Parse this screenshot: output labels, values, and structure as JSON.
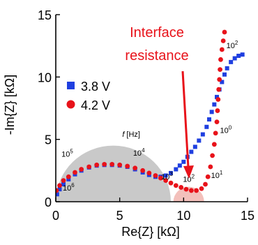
{
  "chart_data": {
    "type": "scatter",
    "title": "",
    "xlabel": "Re{Z} [kΩ]",
    "ylabel": "-Im{Z} [kΩ]",
    "xlim": [
      0,
      15
    ],
    "ylim": [
      0,
      15
    ],
    "xticks": [
      "0",
      "5",
      "10",
      "15"
    ],
    "yticks": [
      "0",
      "5",
      "10",
      "15"
    ],
    "grid": false,
    "legend_position": "left",
    "series": [
      {
        "name": "3.8 V",
        "color": "#1f3fe0",
        "marker": "square",
        "points": [
          [
            0.1,
            0.6
          ],
          [
            0.3,
            1.0
          ],
          [
            0.6,
            1.4
          ],
          [
            1.0,
            1.8
          ],
          [
            1.5,
            2.2
          ],
          [
            2.0,
            2.5
          ],
          [
            2.6,
            2.75
          ],
          [
            3.2,
            2.9
          ],
          [
            3.8,
            2.95
          ],
          [
            4.4,
            2.95
          ],
          [
            5.0,
            2.9
          ],
          [
            5.6,
            2.8
          ],
          [
            6.2,
            2.6
          ],
          [
            6.8,
            2.35
          ],
          [
            7.3,
            2.15
          ],
          [
            7.8,
            2.0
          ],
          [
            8.2,
            2.0
          ],
          [
            8.6,
            2.1
          ],
          [
            9.0,
            2.3
          ],
          [
            9.4,
            2.6
          ],
          [
            9.7,
            2.9
          ],
          [
            10.0,
            3.2
          ],
          [
            10.3,
            3.6
          ],
          [
            10.6,
            4.0
          ],
          [
            10.9,
            4.4
          ],
          [
            11.2,
            4.9
          ],
          [
            11.5,
            5.4
          ],
          [
            11.8,
            6.0
          ],
          [
            12.0,
            6.6
          ],
          [
            12.2,
            7.2
          ],
          [
            12.4,
            7.8
          ],
          [
            12.6,
            8.4
          ],
          [
            12.8,
            9.0
          ],
          [
            13.0,
            9.6
          ],
          [
            13.2,
            10.2
          ],
          [
            13.4,
            10.7
          ],
          [
            13.7,
            11.2
          ],
          [
            14.0,
            11.5
          ],
          [
            14.3,
            11.7
          ],
          [
            14.6,
            11.8
          ]
        ]
      },
      {
        "name": "4.2 V",
        "color": "#e8121a",
        "marker": "circle",
        "points": [
          [
            0.05,
            0.9
          ],
          [
            0.3,
            1.3
          ],
          [
            0.6,
            1.7
          ],
          [
            1.0,
            2.0
          ],
          [
            1.5,
            2.35
          ],
          [
            2.0,
            2.6
          ],
          [
            2.6,
            2.8
          ],
          [
            3.2,
            2.95
          ],
          [
            3.8,
            3.0
          ],
          [
            4.4,
            3.0
          ],
          [
            5.0,
            2.95
          ],
          [
            5.6,
            2.85
          ],
          [
            6.2,
            2.7
          ],
          [
            6.8,
            2.5
          ],
          [
            7.3,
            2.3
          ],
          [
            7.8,
            2.1
          ],
          [
            8.2,
            1.9
          ],
          [
            8.6,
            1.7
          ],
          [
            9.0,
            1.5
          ],
          [
            9.4,
            1.3
          ],
          [
            9.8,
            1.15
          ],
          [
            10.2,
            1.0
          ],
          [
            10.6,
            0.9
          ],
          [
            11.0,
            0.9
          ],
          [
            11.4,
            1.05
          ],
          [
            11.7,
            1.4
          ],
          [
            11.9,
            2.0
          ],
          [
            12.1,
            2.8
          ],
          [
            12.25,
            3.7
          ],
          [
            12.4,
            4.6
          ],
          [
            12.5,
            5.5
          ],
          [
            12.6,
            6.4
          ],
          [
            12.65,
            7.3
          ],
          [
            12.7,
            8.2
          ],
          [
            12.75,
            9.0
          ],
          [
            12.8,
            9.8
          ],
          [
            12.85,
            10.6
          ],
          [
            12.9,
            11.4
          ],
          [
            13.0,
            12.2
          ],
          [
            13.1,
            12.9
          ],
          [
            13.2,
            13.6
          ]
        ]
      }
    ],
    "shaded_regions": [
      {
        "shape": "semicircle",
        "center_x": 4.5,
        "radius": 4.5,
        "color": "#c0c0c0"
      },
      {
        "shape": "semicircle",
        "center_x": 10.4,
        "radius": 1.2,
        "color": "#f2b9b4"
      }
    ],
    "frequency_labels": [
      {
        "text": "10",
        "exp": "6",
        "x": 1.0,
        "y": 0.9
      },
      {
        "text": "10",
        "exp": "5",
        "x": 0.9,
        "y": 3.6
      },
      {
        "text": "10",
        "exp": "4",
        "x": 6.5,
        "y": 3.7
      },
      {
        "text": "10",
        "exp": "3",
        "x": 8.7,
        "y": 1.8
      },
      {
        "text": "10",
        "exp": "2",
        "x": 10.4,
        "y": 1.6
      },
      {
        "text": "10",
        "exp": "1",
        "x": 12.6,
        "y": 1.9
      },
      {
        "text": "10",
        "exp": "0",
        "x": 13.3,
        "y": 5.5
      },
      {
        "text": "10",
        "exp": "2",
        "x": 13.8,
        "y": 12.3
      }
    ],
    "axis_note": {
      "italic": "f",
      "rest": " [Hz]",
      "x": 5.9,
      "y": 5.2
    },
    "annotation": {
      "lines": [
        "Interface",
        "resistance"
      ],
      "color": "#e8121a"
    }
  }
}
